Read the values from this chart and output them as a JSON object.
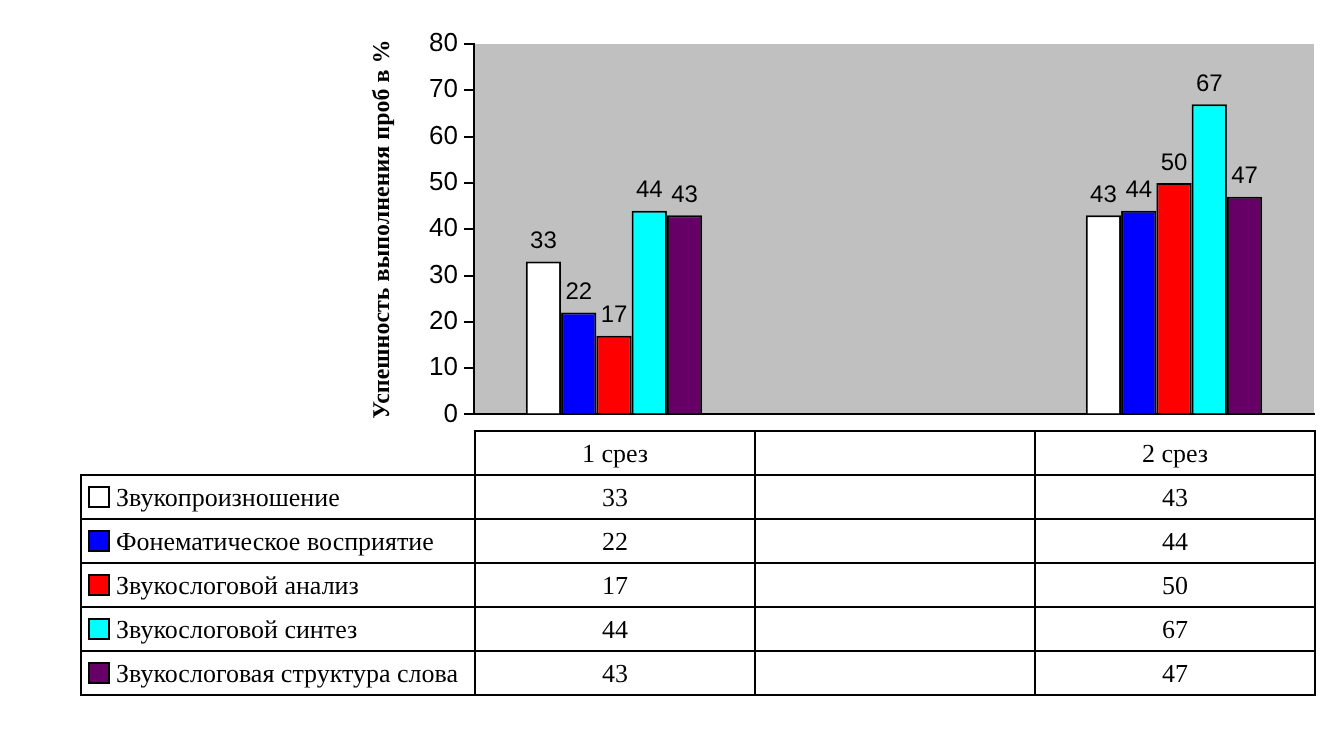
{
  "chart_data": {
    "type": "bar",
    "ylabel": "Успешность выполнения проб в %",
    "categories": [
      "1 срез",
      null,
      "2 срез"
    ],
    "series": [
      {
        "name": "Звукопроизношение",
        "color": "#ffffff",
        "values": [
          33,
          null,
          43
        ],
        "value_labels": [
          "33",
          null,
          "43"
        ]
      },
      {
        "name": "Фонематическое восприятие",
        "color": "#0000ff",
        "values": [
          22,
          null,
          44
        ],
        "value_labels": [
          "22",
          null,
          "44"
        ]
      },
      {
        "name": "Звукослоговой анализ",
        "color": "#ff0000",
        "values": [
          17,
          null,
          50
        ],
        "value_labels": [
          "17",
          null,
          "50"
        ]
      },
      {
        "name": "Звукослоговой синтез",
        "color": "#00ffff",
        "values": [
          44,
          null,
          67
        ],
        "value_labels": [
          "44",
          null,
          "67"
        ]
      },
      {
        "name": "Звукослоговая структура слова",
        "color": "#660066",
        "values": [
          43,
          null,
          47
        ],
        "value_labels": [
          "43",
          null,
          "47"
        ]
      }
    ],
    "ylim": [
      0,
      80
    ],
    "yticks": [
      0,
      10,
      20,
      30,
      40,
      50,
      60,
      70,
      80
    ],
    "grid": false,
    "legend": "bottom left",
    "annotations": [
      "33",
      "43",
      "22",
      "44",
      "17",
      "50",
      "44",
      "67",
      "43",
      "47"
    ]
  }
}
